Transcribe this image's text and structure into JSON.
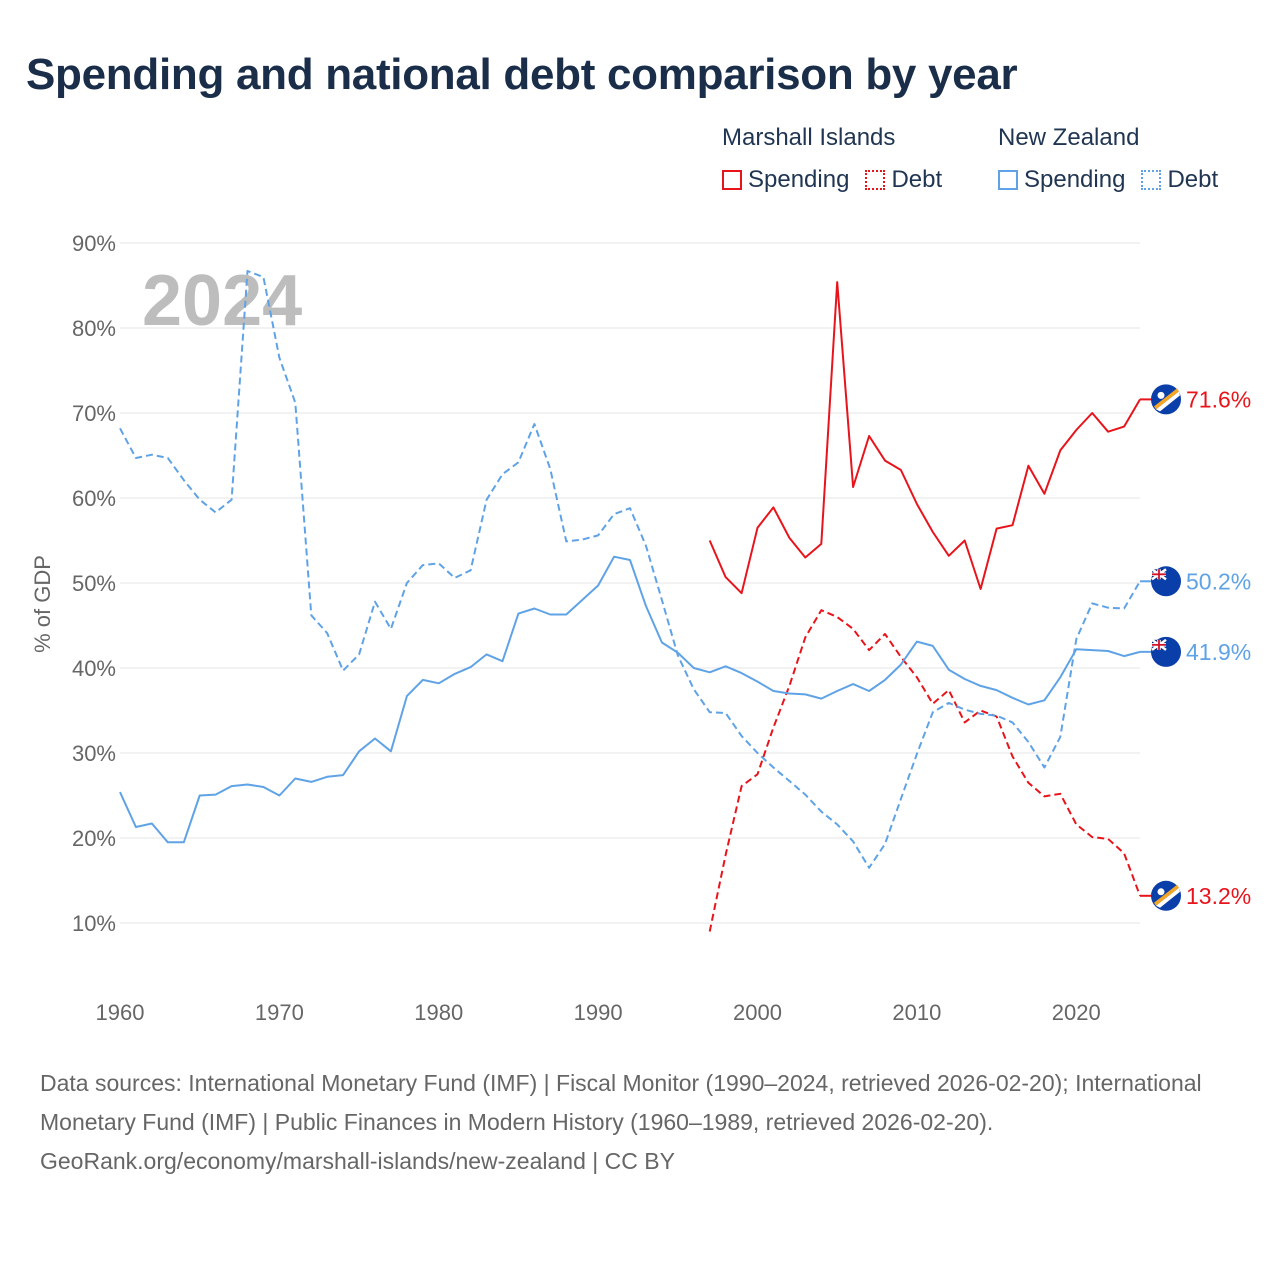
{
  "title": "Spending and national debt comparison by year",
  "legend": {
    "groups": [
      {
        "country": "Marshall Islands",
        "items": [
          {
            "label": "Spending",
            "color": "#e8141b",
            "style": "solid"
          },
          {
            "label": "Debt",
            "color": "#e8141b",
            "style": "dotted"
          }
        ]
      },
      {
        "country": "New Zealand",
        "items": [
          {
            "label": "Spending",
            "color": "#5fa3e6",
            "style": "solid"
          },
          {
            "label": "Debt",
            "color": "#5fa3e6",
            "style": "dotted"
          }
        ]
      }
    ]
  },
  "chart_data": {
    "type": "line",
    "title": "Spending and national debt comparison by year",
    "xlabel": "",
    "ylabel": "% of GDP",
    "xlim": [
      1960,
      2024
    ],
    "ylim": [
      0,
      90
    ],
    "x_ticks": [
      1960,
      1970,
      1980,
      1990,
      2000,
      2010,
      2020
    ],
    "y_ticks": [
      10,
      20,
      30,
      40,
      50,
      60,
      70,
      80,
      90
    ],
    "y_tick_labels": [
      "10%",
      "20%",
      "30%",
      "40%",
      "50%",
      "60%",
      "70%",
      "80%",
      "90%"
    ],
    "watermark_year": "2024",
    "grid": true,
    "series": [
      {
        "name": "Marshall Islands Spending",
        "color": "#e8141b",
        "dash": false,
        "end_label": "71.6%",
        "flag": "marshall",
        "x": [
          1997,
          1998,
          1999,
          2000,
          2001,
          2002,
          2003,
          2004,
          2005,
          2006,
          2007,
          2008,
          2009,
          2010,
          2011,
          2012,
          2013,
          2014,
          2015,
          2016,
          2017,
          2018,
          2019,
          2020,
          2021,
          2022,
          2023,
          2024
        ],
        "values": [
          55.0,
          50.7,
          48.8,
          56.5,
          58.9,
          55.3,
          53.0,
          54.6,
          85.4,
          61.3,
          67.3,
          64.4,
          63.3,
          59.3,
          56.0,
          53.2,
          55.0,
          49.3,
          56.4,
          56.8,
          63.8,
          60.5,
          65.6,
          68.0,
          70.0,
          67.8,
          68.4,
          71.6
        ]
      },
      {
        "name": "Marshall Islands Debt",
        "color": "#e8141b",
        "dash": true,
        "end_label": "13.2%",
        "flag": "marshall",
        "x": [
          1997,
          1998,
          1999,
          2000,
          2001,
          2002,
          2003,
          2004,
          2005,
          2006,
          2007,
          2008,
          2009,
          2010,
          2011,
          2012,
          2013,
          2014,
          2015,
          2016,
          2017,
          2018,
          2019,
          2020,
          2021,
          2022,
          2023,
          2024
        ],
        "values": [
          9.0,
          18.0,
          26.1,
          27.5,
          33.0,
          37.9,
          43.6,
          46.8,
          46.0,
          44.6,
          42.1,
          44.0,
          41.3,
          38.9,
          35.8,
          37.4,
          33.6,
          35.0,
          34.3,
          29.6,
          26.5,
          24.9,
          25.2,
          21.6,
          20.1,
          19.9,
          18.2,
          13.2
        ]
      },
      {
        "name": "New Zealand Spending",
        "color": "#5fa3e6",
        "dash": false,
        "end_label": "41.9%",
        "flag": "newzealand",
        "x": [
          1960,
          1961,
          1962,
          1963,
          1964,
          1965,
          1966,
          1967,
          1968,
          1969,
          1970,
          1971,
          1972,
          1973,
          1974,
          1975,
          1976,
          1977,
          1978,
          1979,
          1980,
          1981,
          1982,
          1983,
          1984,
          1985,
          1986,
          1987,
          1988,
          1989,
          1990,
          1991,
          1992,
          1993,
          1994,
          1995,
          1996,
          1997,
          1998,
          1999,
          2000,
          2001,
          2002,
          2003,
          2004,
          2005,
          2006,
          2007,
          2008,
          2009,
          2010,
          2011,
          2012,
          2013,
          2014,
          2015,
          2016,
          2017,
          2018,
          2019,
          2020,
          2021,
          2022,
          2023,
          2024
        ],
        "values": [
          25.4,
          21.3,
          21.7,
          19.5,
          19.5,
          25.0,
          25.1,
          26.1,
          26.3,
          26.0,
          25.0,
          27.0,
          26.6,
          27.2,
          27.4,
          30.2,
          31.7,
          30.2,
          36.7,
          38.6,
          38.2,
          39.3,
          40.1,
          41.6,
          40.8,
          46.4,
          47.0,
          46.3,
          46.3,
          48.0,
          49.7,
          53.1,
          52.7,
          47.3,
          43.0,
          41.8,
          40.0,
          39.5,
          40.2,
          39.4,
          38.4,
          37.3,
          37.0,
          36.9,
          36.4,
          37.3,
          38.1,
          37.3,
          38.6,
          40.4,
          43.1,
          42.6,
          39.8,
          38.7,
          37.9,
          37.4,
          36.5,
          35.7,
          36.2,
          38.9,
          42.2,
          42.1,
          42.0,
          41.4,
          41.9
        ]
      },
      {
        "name": "New Zealand Debt",
        "color": "#5fa3e6",
        "dash": true,
        "end_label": "50.2%",
        "flag": "newzealand",
        "x": [
          1960,
          1961,
          1962,
          1963,
          1964,
          1965,
          1966,
          1967,
          1968,
          1969,
          1970,
          1971,
          1972,
          1973,
          1974,
          1975,
          1976,
          1977,
          1978,
          1979,
          1980,
          1981,
          1982,
          1983,
          1984,
          1985,
          1986,
          1987,
          1988,
          1989,
          1990,
          1991,
          1992,
          1993,
          1994,
          1995,
          1996,
          1997,
          1998,
          1999,
          2000,
          2001,
          2002,
          2003,
          2004,
          2005,
          2006,
          2007,
          2008,
          2009,
          2010,
          2011,
          2012,
          2013,
          2014,
          2015,
          2016,
          2017,
          2018,
          2019,
          2020,
          2021,
          2022,
          2023,
          2024
        ],
        "values": [
          68.2,
          64.7,
          65.1,
          64.7,
          62.1,
          59.8,
          58.3,
          59.8,
          86.7,
          86.0,
          76.5,
          71.2,
          46.2,
          44.1,
          39.7,
          41.6,
          47.8,
          44.6,
          50.0,
          52.1,
          52.3,
          50.6,
          51.5,
          59.8,
          62.8,
          64.2,
          68.7,
          63.4,
          54.9,
          55.1,
          55.6,
          58.1,
          58.8,
          54.4,
          48.0,
          41.5,
          37.5,
          34.8,
          34.7,
          32.0,
          30.0,
          28.3,
          26.7,
          25.1,
          23.1,
          21.6,
          19.6,
          16.5,
          19.3,
          24.6,
          29.9,
          34.8,
          35.9,
          35.1,
          34.6,
          34.4,
          33.6,
          31.3,
          28.3,
          31.9,
          43.4,
          47.6,
          47.1,
          47.0,
          50.2
        ]
      }
    ]
  },
  "footer": {
    "sources": "Data sources: International Monetary Fund (IMF) | Fiscal Monitor (1990–2024, retrieved 2026-02-20); International Monetary Fund (IMF) | Public Finances in Modern History (1960–1989, retrieved 2026-02-20).",
    "credit": "GeoRank.org/economy/marshall-islands/new-zealand | CC BY"
  },
  "colors": {
    "title": "#1a2e4a",
    "grid": "#e6e6e6",
    "axis_text": "#666666",
    "watermark": "#bdbdbd"
  }
}
